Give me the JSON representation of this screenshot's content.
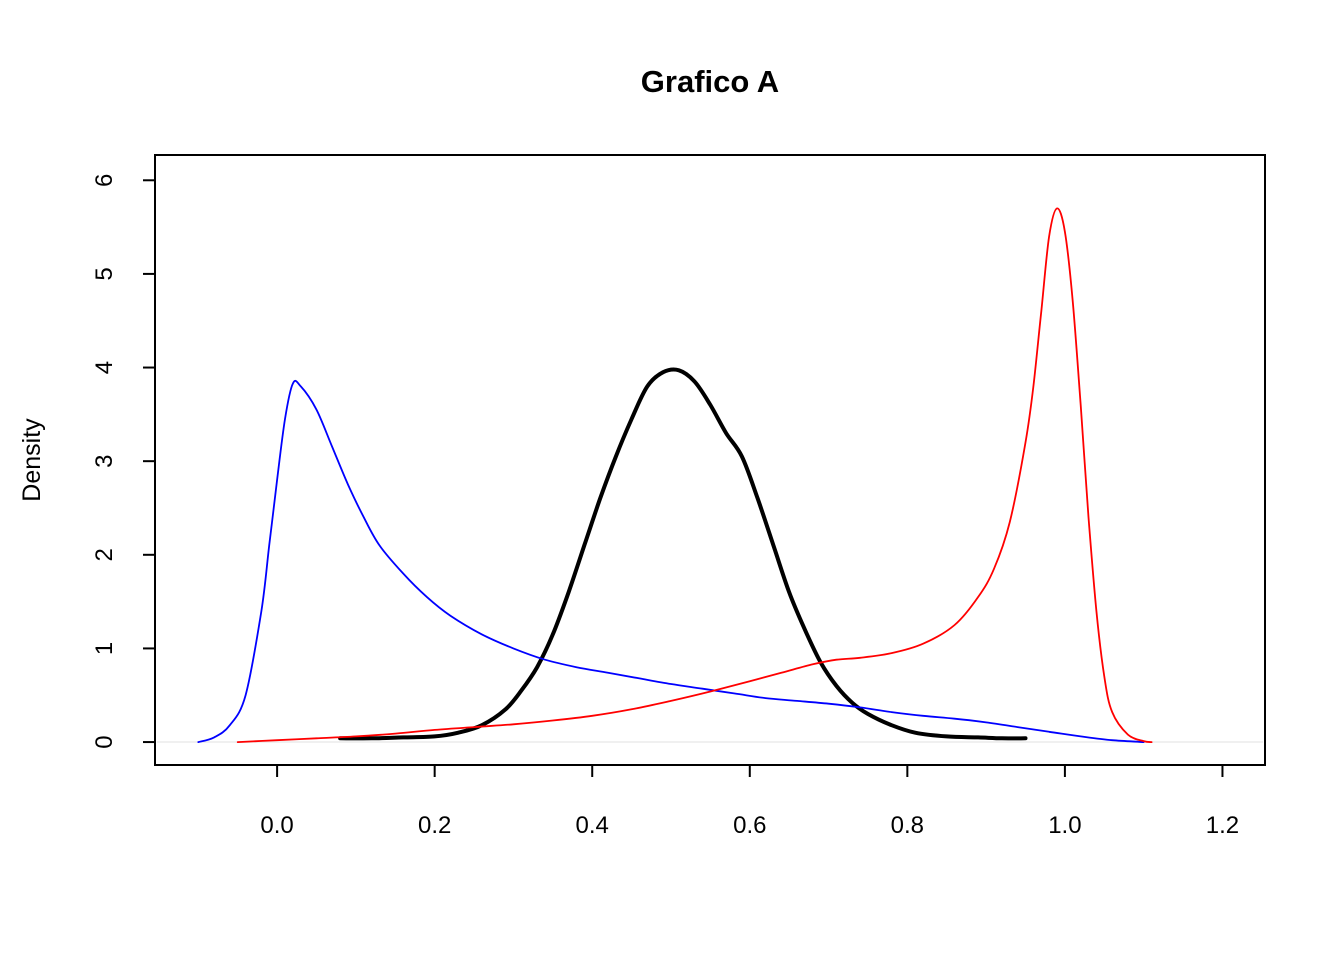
{
  "chart_data": {
    "type": "line",
    "title": "Grafico A",
    "xlabel": "",
    "ylabel": "Density",
    "grid": false,
    "legend": "none",
    "xlim": [
      -0.155,
      1.254
    ],
    "ylim": [
      -0.245,
      6.27
    ],
    "x_tick_values": [
      0.0,
      0.2,
      0.4,
      0.6,
      0.8,
      1.0,
      1.2
    ],
    "x_tick_labels": [
      "0.0",
      "0.2",
      "0.4",
      "0.6",
      "0.8",
      "1.0",
      "1.2"
    ],
    "y_tick_values": [
      0,
      1,
      2,
      3,
      4,
      5,
      6
    ],
    "y_tick_labels": [
      "0",
      "1",
      "2",
      "3",
      "4",
      "5",
      "6"
    ],
    "zero_line": {
      "y": 0,
      "color": "#ebebeb"
    },
    "series": [
      {
        "name": "center-peak-black",
        "color": "#000000",
        "width": 4,
        "x": [
          0.08,
          0.12,
          0.16,
          0.2,
          0.23,
          0.26,
          0.29,
          0.31,
          0.33,
          0.35,
          0.37,
          0.39,
          0.41,
          0.43,
          0.45,
          0.47,
          0.49,
          0.51,
          0.53,
          0.55,
          0.57,
          0.59,
          0.61,
          0.63,
          0.65,
          0.67,
          0.69,
          0.71,
          0.73,
          0.75,
          0.78,
          0.81,
          0.85,
          0.89,
          0.92,
          0.95
        ],
        "y": [
          0.04,
          0.04,
          0.05,
          0.06,
          0.1,
          0.18,
          0.35,
          0.55,
          0.8,
          1.15,
          1.6,
          2.1,
          2.6,
          3.05,
          3.45,
          3.8,
          3.95,
          3.97,
          3.85,
          3.6,
          3.3,
          3.05,
          2.6,
          2.1,
          1.6,
          1.2,
          0.85,
          0.6,
          0.42,
          0.3,
          0.18,
          0.1,
          0.06,
          0.05,
          0.04,
          0.04
        ]
      },
      {
        "name": "left-peak-blue",
        "color": "#0000ff",
        "width": 1.8,
        "x": [
          -0.1,
          -0.08,
          -0.06,
          -0.04,
          -0.02,
          -0.01,
          0.0,
          0.01,
          0.02,
          0.03,
          0.05,
          0.07,
          0.09,
          0.11,
          0.13,
          0.16,
          0.19,
          0.22,
          0.26,
          0.3,
          0.34,
          0.38,
          0.42,
          0.46,
          0.5,
          0.54,
          0.58,
          0.62,
          0.66,
          0.7,
          0.74,
          0.78,
          0.82,
          0.86,
          0.9,
          0.94,
          0.98,
          1.02,
          1.06,
          1.1
        ],
        "y": [
          0.0,
          0.05,
          0.18,
          0.5,
          1.4,
          2.1,
          2.8,
          3.45,
          3.83,
          3.8,
          3.55,
          3.15,
          2.75,
          2.4,
          2.1,
          1.8,
          1.55,
          1.35,
          1.15,
          1.0,
          0.88,
          0.8,
          0.74,
          0.68,
          0.62,
          0.57,
          0.52,
          0.47,
          0.44,
          0.41,
          0.37,
          0.32,
          0.28,
          0.25,
          0.21,
          0.16,
          0.11,
          0.06,
          0.02,
          0.0
        ]
      },
      {
        "name": "right-peak-red",
        "color": "#ff0000",
        "width": 1.8,
        "x": [
          -0.05,
          0.0,
          0.05,
          0.1,
          0.15,
          0.2,
          0.25,
          0.3,
          0.35,
          0.4,
          0.45,
          0.5,
          0.55,
          0.6,
          0.64,
          0.68,
          0.71,
          0.74,
          0.78,
          0.82,
          0.86,
          0.89,
          0.91,
          0.93,
          0.95,
          0.96,
          0.97,
          0.98,
          0.99,
          1.0,
          1.01,
          1.02,
          1.03,
          1.04,
          1.05,
          1.06,
          1.08,
          1.1,
          1.11
        ],
        "y": [
          0.0,
          0.02,
          0.04,
          0.06,
          0.09,
          0.13,
          0.16,
          0.19,
          0.23,
          0.28,
          0.35,
          0.44,
          0.54,
          0.65,
          0.74,
          0.83,
          0.88,
          0.9,
          0.95,
          1.05,
          1.25,
          1.55,
          1.85,
          2.35,
          3.2,
          3.8,
          4.6,
          5.4,
          5.7,
          5.45,
          4.7,
          3.6,
          2.4,
          1.4,
          0.7,
          0.32,
          0.08,
          0.01,
          0.0
        ]
      }
    ]
  }
}
